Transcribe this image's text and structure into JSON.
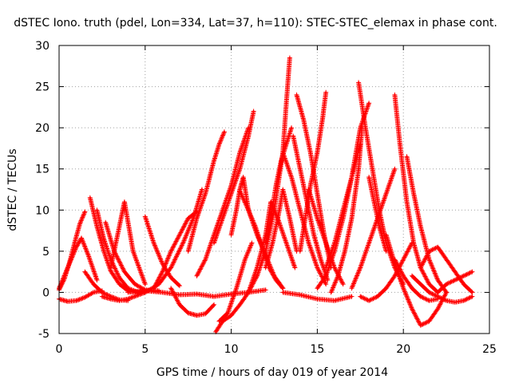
{
  "chart_data": {
    "type": "scatter",
    "title": "dSTEC Iono. truth (pdel, Lon=334, Lat=37, h=110): STEC-STEC_elemax in phase cont.",
    "xlabel": "GPS time / hours of day 019 of year 2014",
    "ylabel": "dSTEC  / TECUs",
    "xlim": [
      0,
      25
    ],
    "ylim": [
      -5,
      30
    ],
    "xticks": [
      0,
      5,
      10,
      15,
      20,
      25
    ],
    "yticks": [
      -5,
      0,
      5,
      10,
      15,
      20,
      25,
      30
    ],
    "grid": true,
    "marker": "+",
    "color": "#ff0000",
    "series": [
      {
        "x": [
          0.0,
          0.3,
          0.6,
          0.9,
          1.2,
          1.5
        ],
        "y": [
          0.3,
          1.6,
          3.6,
          6.0,
          8.3,
          9.8
        ]
      },
      {
        "x": [
          0.0,
          0.5,
          1.0,
          1.3,
          1.7,
          2.2
        ],
        "y": [
          0.5,
          3.0,
          5.5,
          6.6,
          4.5,
          1.5
        ]
      },
      {
        "x": [
          0.0,
          0.5,
          1.0,
          1.5,
          2.0,
          2.5
        ],
        "y": [
          -0.8,
          -1.1,
          -1.0,
          -0.6,
          0.0,
          0.2
        ]
      },
      {
        "x": [
          1.8,
          2.2,
          2.6,
          3.0,
          3.5,
          4.0,
          4.5,
          5.0
        ],
        "y": [
          11.5,
          8.0,
          5.0,
          2.6,
          1.0,
          0.2,
          0.0,
          0.2
        ]
      },
      {
        "x": [
          2.2,
          2.6,
          3.0,
          3.5,
          4.0,
          4.6,
          5.2
        ],
        "y": [
          10.0,
          6.5,
          4.0,
          1.8,
          0.5,
          0.0,
          0.2
        ]
      },
      {
        "x": [
          1.5,
          2.0,
          2.5,
          3.0,
          3.5,
          4.0
        ],
        "y": [
          2.5,
          1.0,
          0.0,
          -0.5,
          -0.9,
          -1.0
        ]
      },
      {
        "x": [
          2.7,
          3.2,
          3.8,
          4.4,
          5.0,
          5.8
        ],
        "y": [
          8.5,
          5.0,
          2.5,
          1.0,
          0.3,
          0.2
        ]
      },
      {
        "x": [
          3.0,
          3.3,
          3.6,
          3.8,
          4.3,
          5.0
        ],
        "y": [
          3.0,
          6.0,
          9.0,
          11.0,
          5.0,
          1.0
        ]
      },
      {
        "x": [
          2.5,
          3.0,
          3.5,
          4.0,
          4.5,
          5.0
        ],
        "y": [
          -0.5,
          -0.8,
          -1.0,
          -0.8,
          -0.4,
          0.0
        ]
      },
      {
        "x": [
          5.0,
          5.5,
          6.0,
          6.5,
          7.0
        ],
        "y": [
          9.2,
          6.0,
          3.5,
          1.8,
          0.8
        ]
      },
      {
        "x": [
          5.5,
          6.0,
          6.5,
          7.0,
          7.5,
          8.0
        ],
        "y": [
          0.5,
          2.5,
          5.0,
          7.0,
          9.0,
          9.8
        ]
      },
      {
        "x": [
          5.0,
          5.8,
          6.5,
          7.2,
          7.8,
          8.3
        ],
        "y": [
          0.0,
          1.0,
          3.0,
          6.0,
          9.0,
          12.5
        ]
      },
      {
        "x": [
          4.0,
          5.0,
          6.0,
          7.0,
          8.0,
          9.0,
          10.0,
          11.0,
          12.0
        ],
        "y": [
          0.0,
          0.2,
          0.0,
          -0.3,
          -0.2,
          -0.5,
          -0.2,
          0.0,
          0.3
        ]
      },
      {
        "x": [
          6.5,
          7.0,
          7.5,
          8.0,
          8.5,
          9.0
        ],
        "y": [
          0.5,
          -1.5,
          -2.5,
          -2.8,
          -2.6,
          -1.5
        ]
      },
      {
        "x": [
          7.5,
          8.0,
          8.5,
          9.0,
          9.3,
          9.6
        ],
        "y": [
          5.0,
          9.0,
          12.0,
          16.0,
          18.0,
          19.5
        ]
      },
      {
        "x": [
          8.0,
          8.5,
          9.0,
          9.5,
          10.0,
          10.5,
          11.0
        ],
        "y": [
          2.0,
          4.0,
          7.0,
          10.0,
          13.0,
          17.0,
          20.0
        ]
      },
      {
        "x": [
          9.0,
          9.5,
          10.0,
          10.5,
          11.0,
          11.3
        ],
        "y": [
          6.0,
          9.0,
          12.0,
          15.0,
          19.0,
          22.0
        ]
      },
      {
        "x": [
          9.1,
          9.5,
          10.0,
          10.5,
          11.0,
          11.5
        ],
        "y": [
          -4.8,
          -3.5,
          -2.8,
          -1.5,
          0.0,
          2.0
        ]
      },
      {
        "x": [
          9.3,
          9.8,
          10.3,
          10.8,
          11.2
        ],
        "y": [
          -3.5,
          -2.5,
          0.5,
          4.0,
          6.0
        ]
      },
      {
        "x": [
          10.0,
          10.3,
          10.5,
          10.7,
          11.0
        ],
        "y": [
          7.0,
          10.0,
          12.5,
          14.0,
          10.0
        ]
      },
      {
        "x": [
          10.5,
          11.0,
          11.5,
          12.0,
          12.5,
          13.0
        ],
        "y": [
          12.3,
          10.0,
          7.0,
          4.5,
          2.0,
          0.5
        ]
      },
      {
        "x": [
          11.0,
          11.4,
          11.8,
          12.2,
          12.6,
          13.0
        ],
        "y": [
          10.0,
          8.0,
          5.5,
          3.0,
          1.5,
          0.5
        ]
      },
      {
        "x": [
          11.0,
          11.5,
          12.0,
          12.3,
          12.7,
          13.2,
          13.7
        ],
        "y": [
          0.0,
          3.0,
          7.0,
          11.0,
          9.0,
          6.0,
          3.0
        ]
      },
      {
        "x": [
          11.5,
          12.0,
          12.5,
          13.0,
          13.2,
          13.4
        ],
        "y": [
          2.0,
          5.0,
          10.0,
          17.0,
          23.0,
          28.5
        ]
      },
      {
        "x": [
          12.0,
          12.4,
          12.8,
          13.0,
          13.4,
          13.8
        ],
        "y": [
          3.0,
          6.0,
          10.0,
          12.5,
          9.0,
          5.0
        ]
      },
      {
        "x": [
          12.0,
          12.3,
          12.6,
          12.9,
          13.2,
          13.5
        ],
        "y": [
          6.0,
          9.0,
          13.0,
          16.0,
          18.0,
          20.0
        ]
      },
      {
        "x": [
          13.0,
          13.5,
          14.0,
          14.5,
          15.0,
          15.5
        ],
        "y": [
          17.0,
          14.0,
          10.0,
          6.0,
          3.0,
          1.0
        ]
      },
      {
        "x": [
          13.8,
          14.2,
          14.6,
          15.0,
          15.4,
          15.8
        ],
        "y": [
          24.0,
          21.0,
          17.0,
          12.0,
          7.0,
          3.0
        ]
      },
      {
        "x": [
          13.6,
          14.0,
          14.4,
          14.8,
          15.2,
          15.6
        ],
        "y": [
          19.0,
          15.0,
          11.0,
          7.0,
          4.0,
          1.5
        ]
      },
      {
        "x": [
          14.0,
          14.3,
          14.6,
          15.0,
          15.3,
          15.5
        ],
        "y": [
          5.0,
          9.0,
          13.0,
          17.0,
          21.0,
          24.3
        ]
      },
      {
        "x": [
          14.5,
          15.0,
          15.5,
          16.0,
          16.5
        ],
        "y": [
          12.5,
          9.0,
          6.0,
          3.0,
          1.0
        ]
      },
      {
        "x": [
          13.0,
          14.0,
          15.0,
          16.0,
          17.0
        ],
        "y": [
          0.0,
          -0.3,
          -0.8,
          -1.0,
          -0.5
        ]
      },
      {
        "x": [
          15.0,
          15.5,
          16.0,
          16.5,
          17.0,
          17.5
        ],
        "y": [
          0.5,
          2.0,
          5.0,
          9.0,
          14.0,
          18.0
        ]
      },
      {
        "x": [
          15.5,
          16.0,
          16.5,
          17.0,
          17.5,
          18.0
        ],
        "y": [
          3.0,
          6.0,
          10.0,
          14.0,
          20.0,
          23.0
        ]
      },
      {
        "x": [
          15.8,
          16.2,
          16.6,
          17.0,
          17.4,
          17.6
        ],
        "y": [
          0.0,
          2.0,
          5.0,
          9.0,
          15.0,
          20.0
        ]
      },
      {
        "x": [
          17.4,
          17.8,
          18.2,
          18.6,
          19.0,
          19.5,
          20.0
        ],
        "y": [
          25.5,
          20.0,
          15.0,
          10.0,
          6.0,
          3.0,
          1.0
        ]
      },
      {
        "x": [
          17.0,
          17.5,
          18.0,
          18.5,
          19.0,
          19.5
        ],
        "y": [
          0.5,
          3.0,
          6.0,
          9.0,
          12.0,
          15.0
        ]
      },
      {
        "x": [
          17.5,
          18.0,
          18.5,
          19.0,
          19.5,
          20.0,
          20.5
        ],
        "y": [
          -0.5,
          -1.0,
          -0.5,
          0.5,
          2.0,
          4.0,
          6.0
        ]
      },
      {
        "x": [
          18.0,
          18.3,
          18.6,
          19.0
        ],
        "y": [
          14.0,
          11.0,
          8.0,
          5.0
        ]
      },
      {
        "x": [
          19.5,
          19.8,
          20.2,
          20.6,
          21.0,
          21.5,
          22.0
        ],
        "y": [
          24.0,
          18.0,
          11.0,
          6.0,
          3.0,
          1.0,
          0.0
        ]
      },
      {
        "x": [
          20.2,
          20.6,
          21.0,
          21.5,
          22.0,
          22.5
        ],
        "y": [
          16.5,
          12.0,
          8.0,
          4.0,
          1.5,
          0.0
        ]
      },
      {
        "x": [
          19.0,
          19.5,
          20.0,
          20.5,
          21.0,
          21.5,
          22.0,
          22.5
        ],
        "y": [
          7.0,
          3.5,
          0.5,
          -2.0,
          -4.0,
          -3.5,
          -2.0,
          0.0
        ]
      },
      {
        "x": [
          19.5,
          20.0,
          20.5,
          21.0,
          21.5,
          22.0
        ],
        "y": [
          4.0,
          2.0,
          0.5,
          -0.5,
          -1.0,
          -0.8
        ]
      },
      {
        "x": [
          20.5,
          21.0,
          21.5,
          22.0,
          22.5,
          23.0,
          23.5,
          24.0
        ],
        "y": [
          2.0,
          1.0,
          0.0,
          -0.5,
          -1.0,
          -1.2,
          -1.0,
          -0.5
        ]
      },
      {
        "x": [
          21.0,
          21.5,
          22.0,
          22.5,
          23.0,
          23.5,
          24.0
        ],
        "y": [
          3.0,
          5.0,
          5.5,
          4.0,
          2.5,
          1.0,
          0.0
        ]
      },
      {
        "x": [
          22.0,
          22.5,
          23.0,
          23.5,
          24.0
        ],
        "y": [
          0.0,
          1.0,
          1.5,
          2.0,
          2.5
        ]
      }
    ]
  }
}
